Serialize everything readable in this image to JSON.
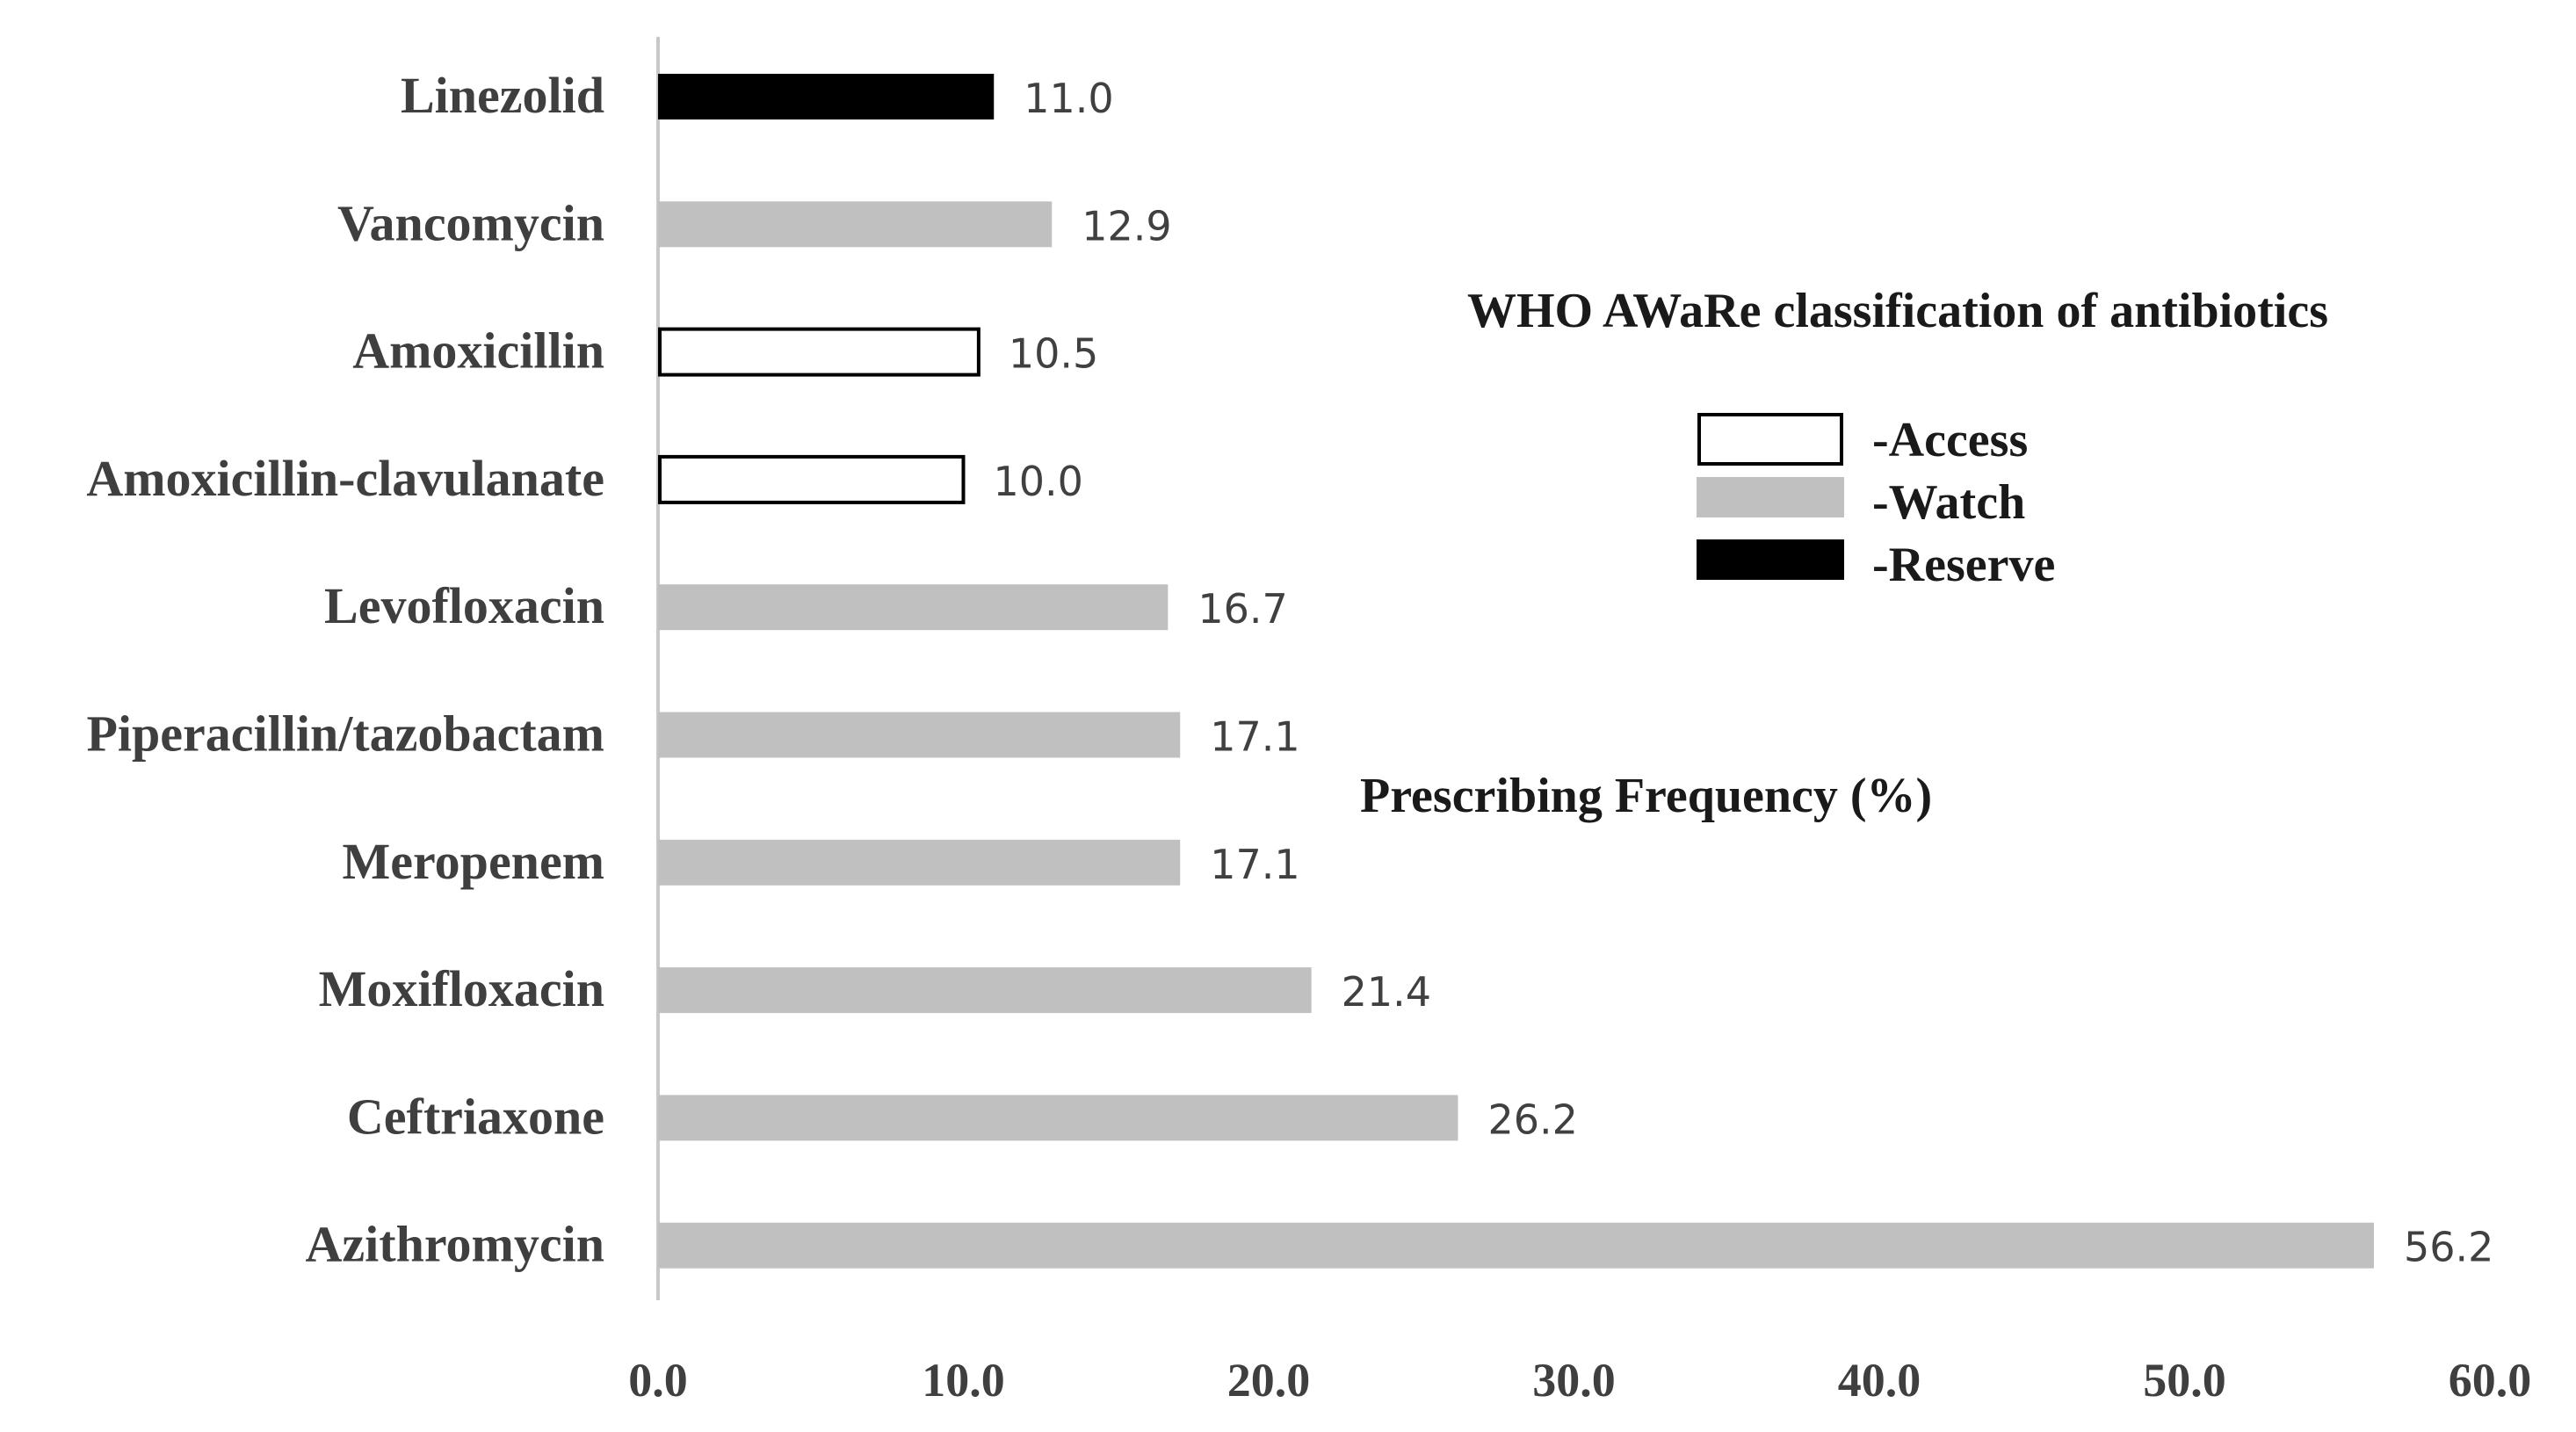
{
  "chart_data": {
    "type": "bar",
    "orientation": "horizontal",
    "categories": [
      "Linezolid",
      "Vancomycin",
      "Amoxicillin",
      "Amoxicillin-clavulanate",
      "Levofloxacin",
      "Piperacillin/tazobactam",
      "Meropenem",
      "Moxifloxacin",
      "Ceftriaxone",
      "Azithromycin"
    ],
    "values": [
      11.0,
      12.9,
      10.5,
      10.0,
      16.7,
      17.1,
      17.1,
      21.4,
      26.2,
      56.2
    ],
    "value_labels": [
      "11.0",
      "12.9",
      "10.5",
      "10.0",
      "16.7",
      "17.1",
      "17.1",
      "21.4",
      "26.2",
      "56.2"
    ],
    "classes": [
      "Reserve",
      "Watch",
      "Access",
      "Access",
      "Watch",
      "Watch",
      "Watch",
      "Watch",
      "Watch",
      "Watch"
    ],
    "title": "",
    "xlabel": "Prescribing Frequency (%)",
    "ylabel": "",
    "xlim": [
      0,
      60
    ],
    "x_ticks": [
      "0.0",
      "10.0",
      "20.0",
      "30.0",
      "40.0",
      "50.0",
      "60.0"
    ],
    "grid": false,
    "legend": {
      "title": "WHO AWaRe classification of antibiotics",
      "placement": "right",
      "entries": [
        {
          "label": "-Access",
          "class": "Access"
        },
        {
          "label": "-Watch",
          "class": "Watch"
        },
        {
          "label": "-Reserve",
          "class": "Reserve"
        }
      ]
    },
    "colors": {
      "Access": "#ffffff",
      "Watch": "#c0c0c0",
      "Reserve": "#000000",
      "outline": "#000000",
      "axis": "#c8c8c8"
    }
  }
}
